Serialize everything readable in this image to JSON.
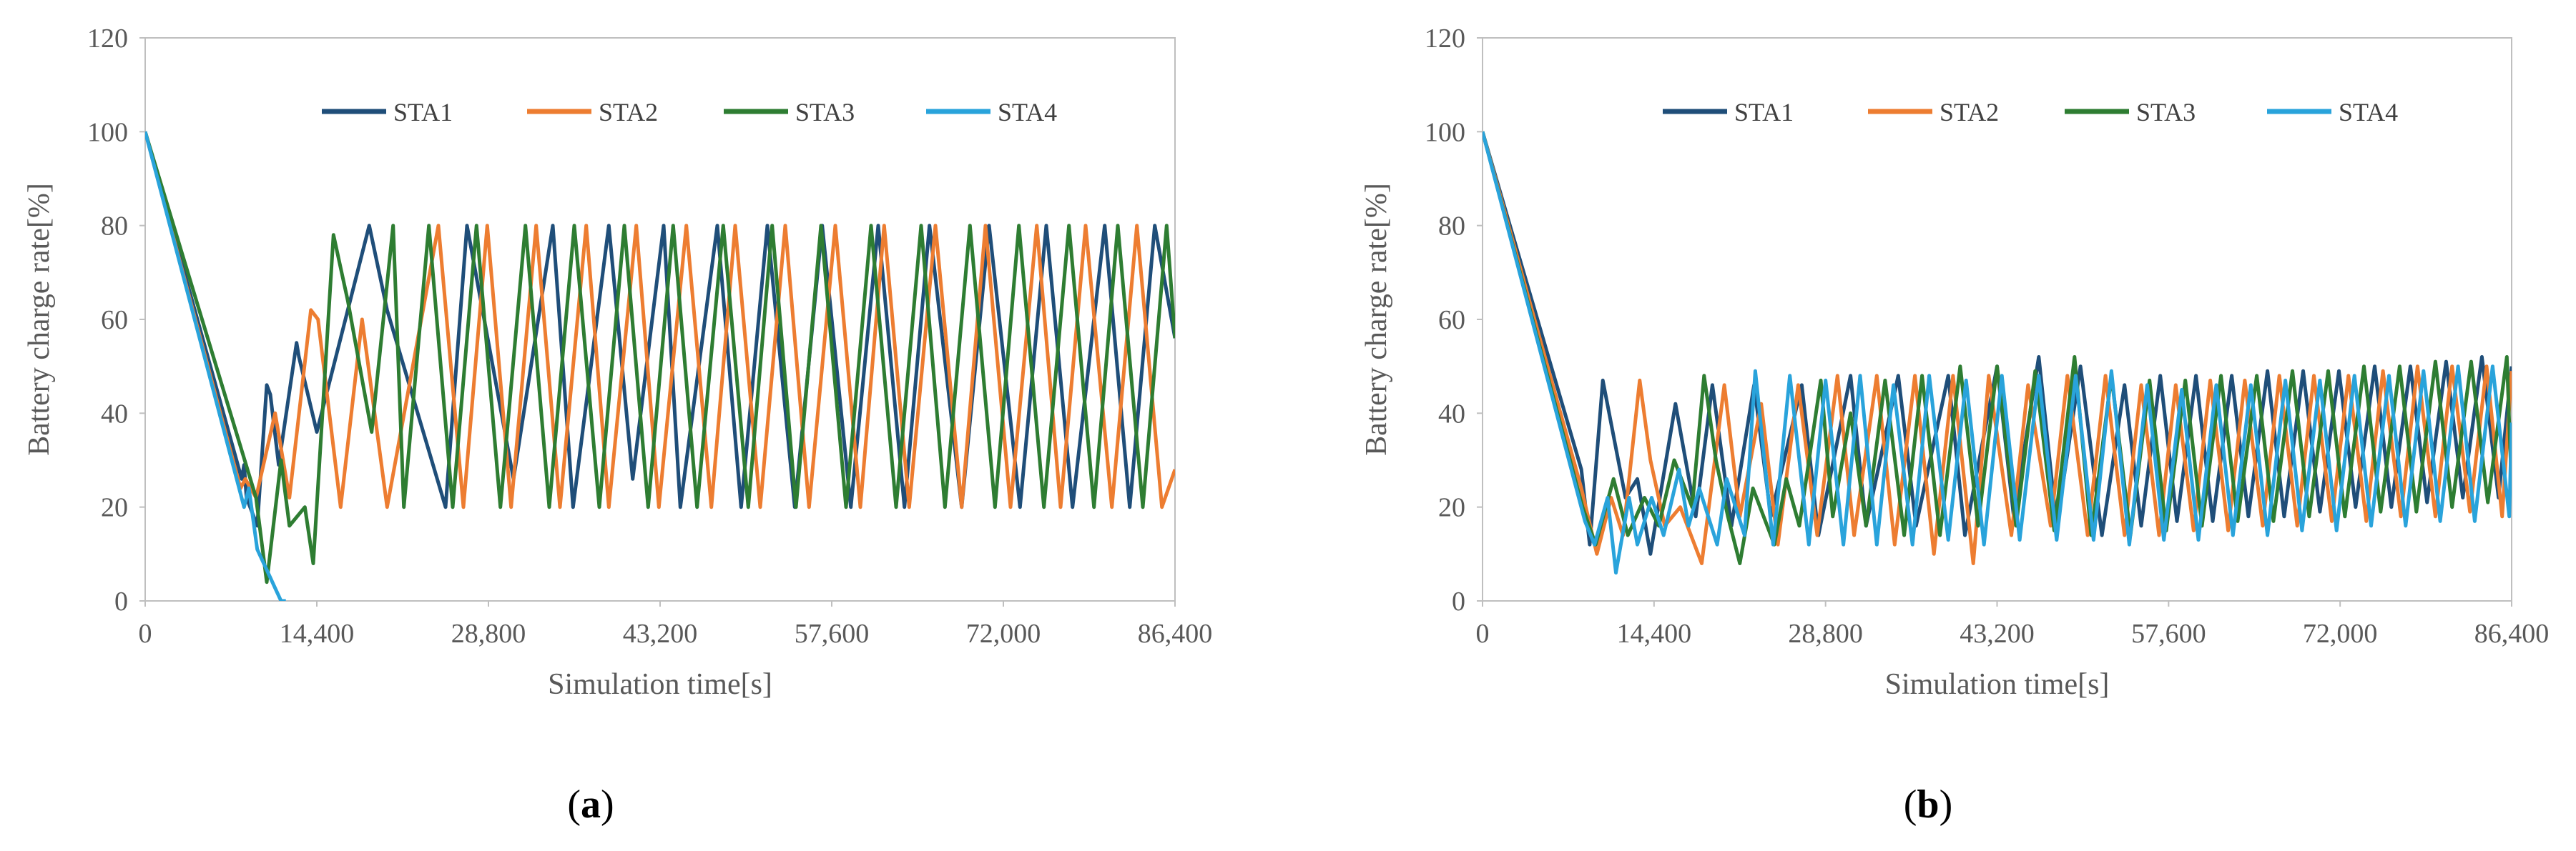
{
  "figure": {
    "panels": [
      {
        "label_open": "(",
        "label_letter": "a",
        "label_close": ")"
      },
      {
        "label_open": "(",
        "label_letter": "b",
        "label_close": ")"
      }
    ]
  },
  "chart_data": [
    {
      "type": "line",
      "panel": "(a)",
      "xlabel": "Simulation time[s]",
      "ylabel": "Battery charge rate[%]",
      "xlim": [
        0,
        86400
      ],
      "ylim": [
        0,
        120
      ],
      "xticks": [
        0,
        14400,
        28800,
        43200,
        57600,
        72000,
        86400
      ],
      "xtick_labels": [
        "0",
        "14,400",
        "28,800",
        "43,200",
        "57,600",
        "72,000",
        "86,400"
      ],
      "yticks": [
        0,
        20,
        40,
        60,
        80,
        100,
        120
      ],
      "ytick_labels": [
        "0",
        "20",
        "40",
        "60",
        "80",
        "100",
        "120"
      ],
      "grid": false,
      "legend_position": "top",
      "series": [
        {
          "name": "STA1",
          "color": "#1F4E79",
          "x": [
            0,
            8100,
            8300,
            8500,
            9400,
            10200,
            10500,
            11200,
            12700,
            12900,
            14400,
            18800,
            20300,
            25200,
            27000,
            30900,
            34200,
            35900,
            38900,
            40900,
            43500,
            44900,
            48000,
            50000,
            52200,
            54500,
            56800,
            59200,
            61500,
            63700,
            65800,
            68500,
            70800,
            73400,
            75600,
            77800,
            80500,
            82600,
            84700,
            86400
          ],
          "y": [
            100,
            26,
            29,
            22,
            16,
            46,
            44,
            29,
            55,
            52,
            36,
            80,
            62,
            20,
            80,
            26,
            80,
            20,
            80,
            26,
            80,
            20,
            80,
            20,
            80,
            20,
            80,
            20,
            80,
            20,
            80,
            20,
            80,
            20,
            80,
            20,
            80,
            20,
            80,
            56
          ]
        },
        {
          "name": "STA2",
          "color": "#ED7D31",
          "x": [
            0,
            8000,
            8400,
            9300,
            10900,
            12100,
            13900,
            14500,
            16400,
            18200,
            20300,
            24600,
            26700,
            28700,
            30700,
            32800,
            34800,
            37000,
            38900,
            41200,
            43100,
            45400,
            47500,
            49500,
            51600,
            53700,
            55700,
            57900,
            60000,
            62000,
            64100,
            66300,
            68500,
            70500,
            72600,
            74800,
            76800,
            78900,
            81100,
            83200,
            85300,
            86400
          ],
          "y": [
            100,
            24,
            26,
            22,
            40,
            22,
            62,
            60,
            20,
            60,
            20,
            80,
            20,
            80,
            20,
            80,
            20,
            80,
            20,
            80,
            20,
            80,
            20,
            80,
            20,
            80,
            20,
            80,
            20,
            80,
            20,
            80,
            20,
            80,
            20,
            80,
            20,
            80,
            20,
            80,
            20,
            28
          ]
        },
        {
          "name": "STA3",
          "color": "#2E7D32",
          "x": [
            0,
            9300,
            10200,
            11400,
            12100,
            13400,
            14100,
            15800,
            17000,
            19000,
            20800,
            21700,
            23800,
            25800,
            27800,
            29800,
            31900,
            33900,
            36000,
            38100,
            40200,
            42200,
            44300,
            46300,
            48500,
            50600,
            52600,
            54600,
            56700,
            58800,
            60900,
            63000,
            65100,
            67100,
            69200,
            71300,
            73300,
            75400,
            77500,
            79600,
            81600,
            83700,
            85700,
            86400
          ],
          "y": [
            100,
            22,
            4,
            30,
            16,
            20,
            8,
            78,
            64,
            36,
            80,
            20,
            80,
            20,
            80,
            20,
            80,
            20,
            80,
            20,
            80,
            20,
            80,
            20,
            80,
            20,
            80,
            20,
            80,
            20,
            80,
            20,
            80,
            20,
            80,
            20,
            80,
            20,
            80,
            20,
            80,
            20,
            80,
            56
          ]
        },
        {
          "name": "STA4",
          "color": "#29A3DB",
          "x": [
            0,
            8300,
            8700,
            9400,
            11400,
            11800
          ],
          "y": [
            100,
            20,
            24,
            11,
            0,
            0
          ]
        }
      ]
    },
    {
      "type": "line",
      "panel": "(b)",
      "xlabel": "Simulation time[s]",
      "ylabel": "Battery charge rate[%]",
      "xlim": [
        0,
        86400
      ],
      "ylim": [
        0,
        120
      ],
      "xticks": [
        0,
        14400,
        28800,
        43200,
        57600,
        72000,
        86400
      ],
      "xtick_labels": [
        "0",
        "14,400",
        "28,800",
        "43,200",
        "57,600",
        "72,000",
        "86,400"
      ],
      "yticks": [
        0,
        20,
        40,
        60,
        80,
        100,
        120
      ],
      "ytick_labels": [
        "0",
        "20",
        "40",
        "60",
        "80",
        "100",
        "120"
      ],
      "grid": false,
      "legend_position": "top",
      "series": [
        {
          "name": "STA1",
          "color": "#1F4E79",
          "x": [
            0,
            8300,
            9000,
            10100,
            12000,
            13000,
            14100,
            16200,
            17900,
            19300,
            20900,
            22800,
            24200,
            26800,
            28200,
            30900,
            32200,
            34900,
            36400,
            39100,
            40500,
            43200,
            44600,
            46700,
            48200,
            50200,
            52000,
            53900,
            55300,
            56900,
            58300,
            59900,
            61300,
            62900,
            64300,
            65900,
            67300,
            68900,
            70300,
            71900,
            73300,
            74900,
            76300,
            77900,
            79300,
            80900,
            82300,
            83900,
            85300,
            86400
          ],
          "y": [
            100,
            28,
            12,
            47,
            22,
            26,
            10,
            42,
            18,
            46,
            16,
            46,
            18,
            46,
            14,
            48,
            16,
            48,
            16,
            48,
            14,
            50,
            18,
            52,
            16,
            50,
            14,
            46,
            16,
            48,
            17,
            48,
            17,
            48,
            18,
            49,
            18,
            49,
            19,
            49,
            20,
            50,
            20,
            50,
            21,
            51,
            22,
            52,
            22,
            50
          ]
        },
        {
          "name": "STA2",
          "color": "#ED7D31",
          "x": [
            0,
            8300,
            9600,
            10800,
            11800,
            13200,
            14100,
            15300,
            16600,
            18400,
            20300,
            21600,
            23400,
            24800,
            26500,
            28100,
            29800,
            31200,
            33100,
            34600,
            36300,
            37900,
            39500,
            41200,
            42500,
            44400,
            45800,
            47700,
            49100,
            50800,
            52300,
            53900,
            55300,
            56800,
            58200,
            59700,
            61100,
            62600,
            64000,
            65500,
            66900,
            68400,
            69800,
            71300,
            72700,
            74200,
            75600,
            77100,
            78500,
            80000,
            81400,
            82900,
            84300,
            85600,
            86400
          ],
          "y": [
            100,
            24,
            10,
            22,
            14,
            47,
            30,
            16,
            20,
            8,
            46,
            18,
            42,
            12,
            46,
            14,
            48,
            14,
            48,
            12,
            48,
            10,
            48,
            8,
            48,
            14,
            46,
            16,
            48,
            14,
            48,
            14,
            46,
            14,
            46,
            15,
            47,
            15,
            47,
            16,
            48,
            16,
            48,
            17,
            48,
            17,
            49,
            18,
            50,
            18,
            50,
            19,
            50,
            18,
            49
          ]
        },
        {
          "name": "STA3",
          "color": "#2E7D32",
          "x": [
            0,
            8400,
            9500,
            11000,
            12200,
            13600,
            14800,
            16100,
            17600,
            18600,
            19600,
            20600,
            21600,
            22700,
            24500,
            25500,
            26600,
            28400,
            29400,
            30900,
            32200,
            33800,
            35400,
            36900,
            38400,
            40100,
            41600,
            43200,
            44800,
            46400,
            48000,
            49700,
            51100,
            52800,
            54400,
            56000,
            57400,
            59000,
            60400,
            62000,
            63400,
            65000,
            66400,
            68000,
            69400,
            71000,
            72400,
            74000,
            75400,
            77000,
            78400,
            80000,
            81400,
            83000,
            84400,
            86000,
            86400
          ],
          "y": [
            100,
            20,
            12,
            26,
            14,
            22,
            16,
            30,
            20,
            48,
            30,
            18,
            8,
            24,
            12,
            26,
            16,
            47,
            18,
            40,
            16,
            47,
            14,
            48,
            14,
            50,
            16,
            50,
            16,
            49,
            15,
            52,
            14,
            48,
            14,
            47,
            15,
            47,
            16,
            48,
            17,
            48,
            17,
            49,
            18,
            49,
            18,
            50,
            19,
            50,
            19,
            51,
            20,
            51,
            21,
            52,
            24
          ]
        },
        {
          "name": "STA4",
          "color": "#29A3DB",
          "x": [
            0,
            8600,
            9400,
            10500,
            11200,
            12300,
            13000,
            14200,
            15200,
            16500,
            17300,
            18200,
            19700,
            20500,
            22000,
            22900,
            24400,
            25800,
            27400,
            28800,
            30300,
            31700,
            33100,
            34500,
            36100,
            37500,
            39100,
            40600,
            42100,
            43600,
            45100,
            46700,
            48200,
            49800,
            51300,
            52800,
            54300,
            55800,
            57200,
            58700,
            60100,
            61600,
            63000,
            64500,
            65900,
            67400,
            68800,
            70300,
            71700,
            73200,
            74600,
            76100,
            77500,
            79000,
            80400,
            81900,
            83300,
            84800,
            86200,
            86400
          ],
          "y": [
            100,
            17,
            12,
            22,
            6,
            22,
            12,
            22,
            14,
            28,
            16,
            24,
            12,
            26,
            14,
            49,
            12,
            48,
            12,
            47,
            12,
            48,
            12,
            46,
            12,
            48,
            13,
            47,
            12,
            48,
            13,
            48,
            13,
            48,
            13,
            49,
            12,
            46,
            13,
            45,
            13,
            46,
            14,
            46,
            14,
            47,
            15,
            47,
            15,
            48,
            16,
            48,
            16,
            49,
            17,
            50,
            17,
            50,
            18,
            38
          ]
        }
      ]
    }
  ]
}
